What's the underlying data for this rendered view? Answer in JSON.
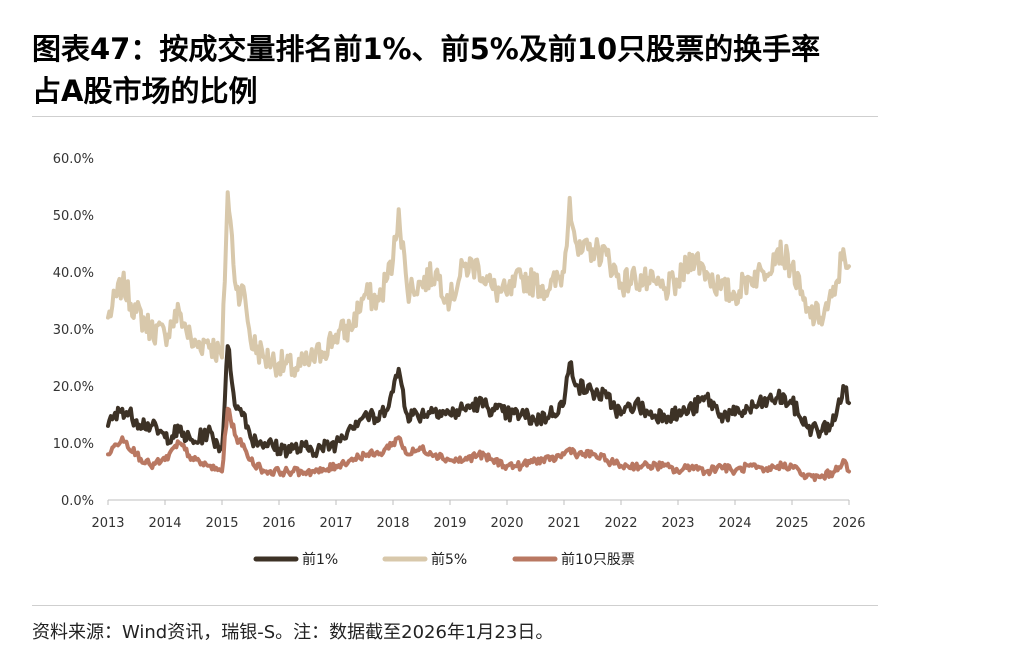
{
  "title_line1": "图表47：按成交量排名前1%、前5%及前10只股票的换手率",
  "title_line2": "占A股市场的比例",
  "source_note": "资料来源：Wind资讯，瑞银-S。注：数据截至2026年1月23日。",
  "chart_data": {
    "type": "line",
    "title": "图表47：按成交量排名前1%、前5%及前10只股票的换手率占A股市场的比例",
    "xlabel": "",
    "ylabel": "",
    "xlim": [
      2013.0,
      2026.0
    ],
    "ylim": [
      0,
      60
    ],
    "y_ticks": [
      "0.0%",
      "10.0%",
      "20.0%",
      "30.0%",
      "40.0%",
      "50.0%",
      "60.0%"
    ],
    "x_ticks": [
      "2013",
      "2014",
      "2015",
      "2016",
      "2017",
      "2018",
      "2019",
      "2020",
      "2021",
      "2022",
      "2023",
      "2024",
      "2025",
      "2026"
    ],
    "legend_position": "bottom",
    "x": [
      2013.0,
      2013.25,
      2013.5,
      2013.75,
      2014.0,
      2014.25,
      2014.5,
      2014.75,
      2015.0,
      2015.1,
      2015.25,
      2015.4,
      2015.5,
      2015.75,
      2016.0,
      2016.25,
      2016.5,
      2016.75,
      2017.0,
      2017.25,
      2017.5,
      2017.75,
      2018.0,
      2018.1,
      2018.25,
      2018.5,
      2018.75,
      2019.0,
      2019.25,
      2019.5,
      2019.75,
      2020.0,
      2020.25,
      2020.5,
      2020.75,
      2021.0,
      2021.1,
      2021.25,
      2021.5,
      2021.75,
      2022.0,
      2022.25,
      2022.5,
      2022.75,
      2023.0,
      2023.25,
      2023.5,
      2023.75,
      2024.0,
      2024.25,
      2024.5,
      2024.75,
      2025.0,
      2025.25,
      2025.5,
      2025.75,
      2025.9,
      2026.0
    ],
    "series": [
      {
        "name": "前1%",
        "color": "#3d3226",
        "values": [
          13,
          16,
          14,
          13,
          11,
          12,
          10,
          12,
          9,
          27,
          16,
          15,
          11,
          10,
          9,
          9,
          9,
          9,
          10,
          13,
          15,
          14,
          19,
          23,
          15,
          15,
          16,
          15,
          16,
          17,
          16,
          15,
          15,
          14,
          15,
          17,
          24,
          20,
          19,
          18,
          15,
          17,
          15,
          15,
          15,
          16,
          18,
          15,
          15,
          16,
          17,
          18,
          17,
          13,
          12,
          14,
          20,
          17
        ]
      },
      {
        "name": "前5%",
        "color": "#d8c8ab",
        "values": [
          32,
          38,
          33,
          30,
          29,
          33,
          27,
          28,
          25,
          54,
          37,
          36,
          28,
          25,
          24,
          23,
          24,
          26,
          29,
          30,
          36,
          35,
          42,
          51,
          37,
          38,
          40,
          35,
          41,
          41,
          37,
          36,
          39,
          38,
          37,
          40,
          53,
          43,
          44,
          43,
          38,
          39,
          38,
          37,
          38,
          43,
          40,
          37,
          36,
          39,
          40,
          44,
          41,
          33,
          32,
          36,
          44,
          41
        ]
      },
      {
        "name": "前10只股票",
        "color": "#b97862",
        "values": [
          8,
          11,
          8,
          6,
          7,
          10,
          7,
          6,
          5,
          16,
          11,
          9,
          7,
          5,
          5,
          5,
          5,
          5,
          6,
          7,
          8,
          8,
          10,
          11,
          8,
          9,
          8,
          7,
          7,
          8,
          7,
          6,
          6,
          7,
          7,
          8,
          9,
          8,
          8,
          7,
          6,
          6,
          6,
          6,
          5,
          6,
          5,
          6,
          5,
          6,
          5,
          6,
          6,
          4,
          4,
          5,
          7,
          5
        ]
      }
    ]
  }
}
